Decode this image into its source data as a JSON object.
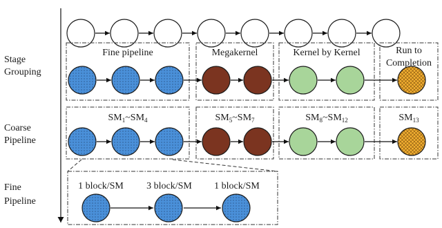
{
  "row_labels": {
    "stage_grouping": [
      "Stage",
      "Grouping"
    ],
    "coarse_pipeline": [
      "Coarse",
      "Pipeline"
    ],
    "fine_pipeline": [
      "Fine",
      "Pipeline"
    ]
  },
  "group_labels": {
    "fine_pipeline": "Fine pipeline",
    "megakernel": "Megakernel",
    "kernel_by_kernel": "Kernel by Kernel",
    "run_to_completion": [
      "Run to",
      "Completion"
    ]
  },
  "sm_labels": {
    "g1": {
      "a": "SM",
      "a_sub": "1",
      "sep": "~",
      "b": "SM",
      "b_sub": "4"
    },
    "g2": {
      "a": "SM",
      "a_sub": "5",
      "sep": "~",
      "b": "SM",
      "b_sub": "7"
    },
    "g3": {
      "a": "SM",
      "a_sub": "8",
      "sep": "~",
      "b": "SM",
      "b_sub": "12"
    },
    "g4": {
      "a": "SM",
      "a_sub": "13"
    }
  },
  "fine_labels": [
    "1 block/SM",
    "3 block/SM",
    "1 block/SM"
  ],
  "colors": {
    "blue": "#4a90d9",
    "brown": "#7b3420",
    "green": "#a8d59a",
    "orange": "#f4b132",
    "white": "#ffffff"
  }
}
